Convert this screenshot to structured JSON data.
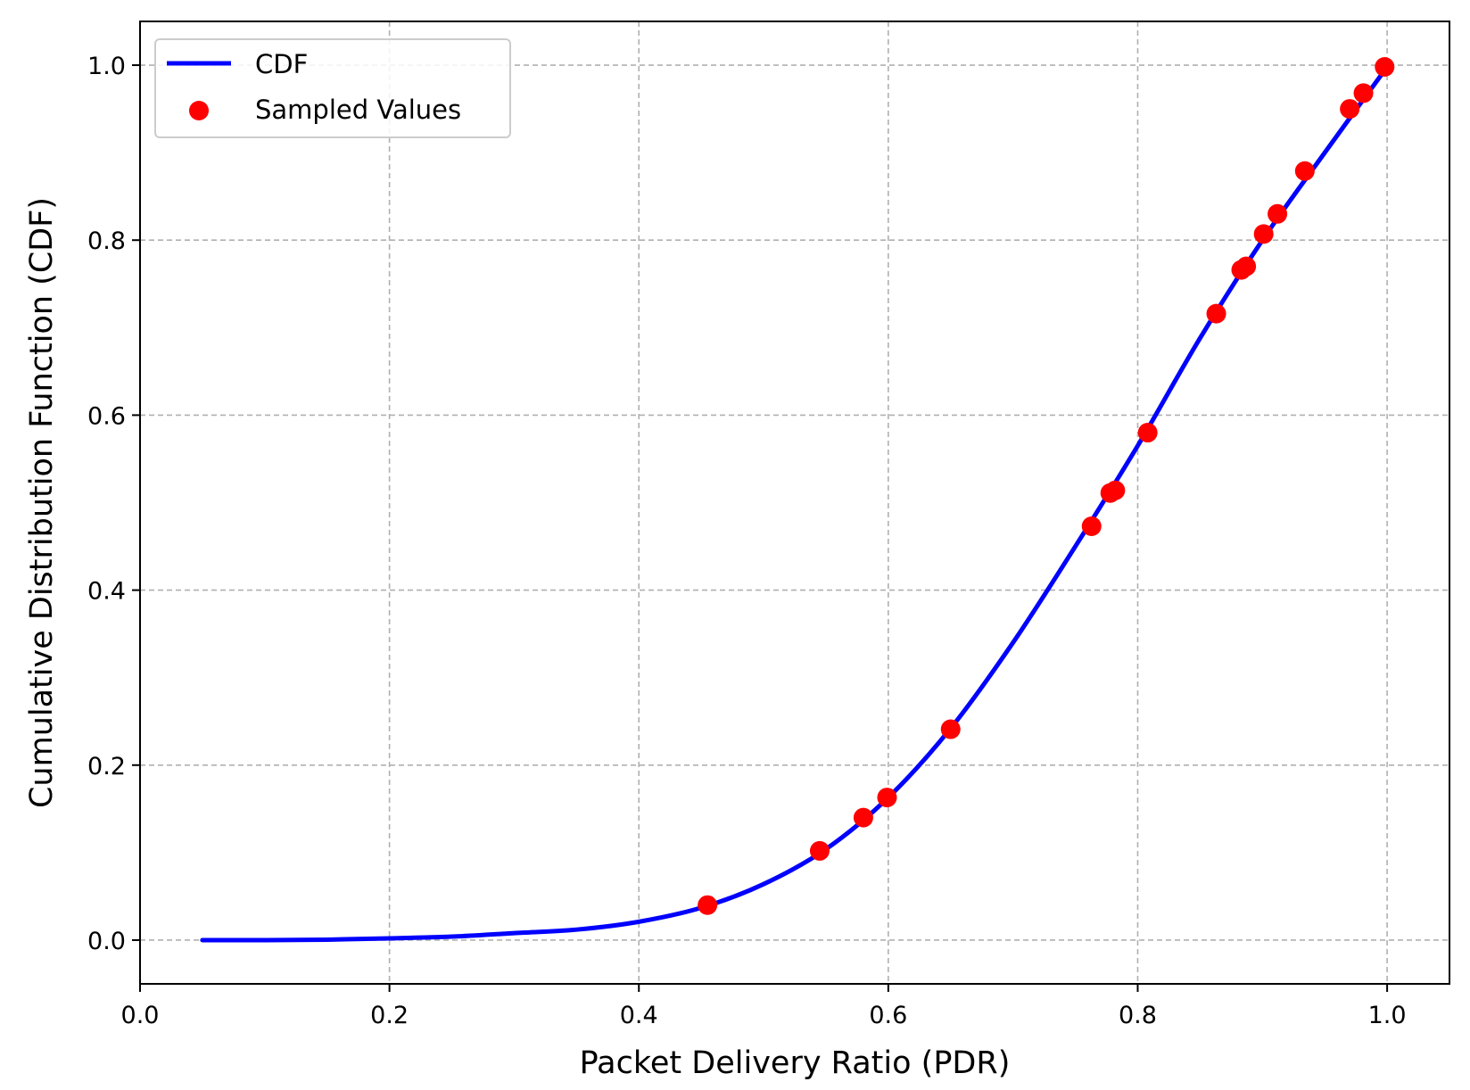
{
  "chart_data": {
    "type": "line",
    "title": "",
    "xlabel": "Packet Delivery Ratio (PDR)",
    "ylabel": "Cumulative Distribution Function (CDF)",
    "xlim": [
      0.0,
      1.05
    ],
    "ylim": [
      -0.05,
      1.05
    ],
    "grid": true,
    "legend_position": "upper-left",
    "x_ticks": [
      0.0,
      0.2,
      0.4,
      0.6,
      0.8,
      1.0
    ],
    "x_tick_labels": [
      "0.0",
      "0.2",
      "0.4",
      "0.6",
      "0.8",
      "1.0"
    ],
    "y_ticks": [
      0.0,
      0.2,
      0.4,
      0.6,
      0.8,
      1.0
    ],
    "y_tick_labels": [
      "0.0",
      "0.2",
      "0.4",
      "0.6",
      "0.8",
      "1.0"
    ],
    "series": [
      {
        "name": "CDF",
        "kind": "line",
        "color": "#0000ff",
        "x": [
          0.05,
          0.1,
          0.15,
          0.2,
          0.25,
          0.3,
          0.35,
          0.4,
          0.45,
          0.5,
          0.55,
          0.6,
          0.65,
          0.7,
          0.75,
          0.8,
          0.85,
          0.9,
          0.95,
          1.0
        ],
        "y": [
          0.0,
          0.0,
          0.0005,
          0.002,
          0.004,
          0.008,
          0.012,
          0.021,
          0.037,
          0.064,
          0.104,
          0.163,
          0.242,
          0.34,
          0.45,
          0.565,
          0.688,
          0.8,
          0.9,
          0.998
        ]
      },
      {
        "name": "Sampled Values",
        "kind": "scatter",
        "color": "#ff0000",
        "x": [
          0.455,
          0.545,
          0.58,
          0.599,
          0.65,
          0.763,
          0.778,
          0.782,
          0.808,
          0.863,
          0.883,
          0.887,
          0.901,
          0.912,
          0.934,
          0.97,
          0.981,
          0.998
        ],
        "y": [
          0.04,
          0.102,
          0.14,
          0.163,
          0.241,
          0.473,
          0.511,
          0.514,
          0.58,
          0.716,
          0.766,
          0.77,
          0.807,
          0.83,
          0.879,
          0.95,
          0.968,
          0.998
        ]
      }
    ]
  }
}
